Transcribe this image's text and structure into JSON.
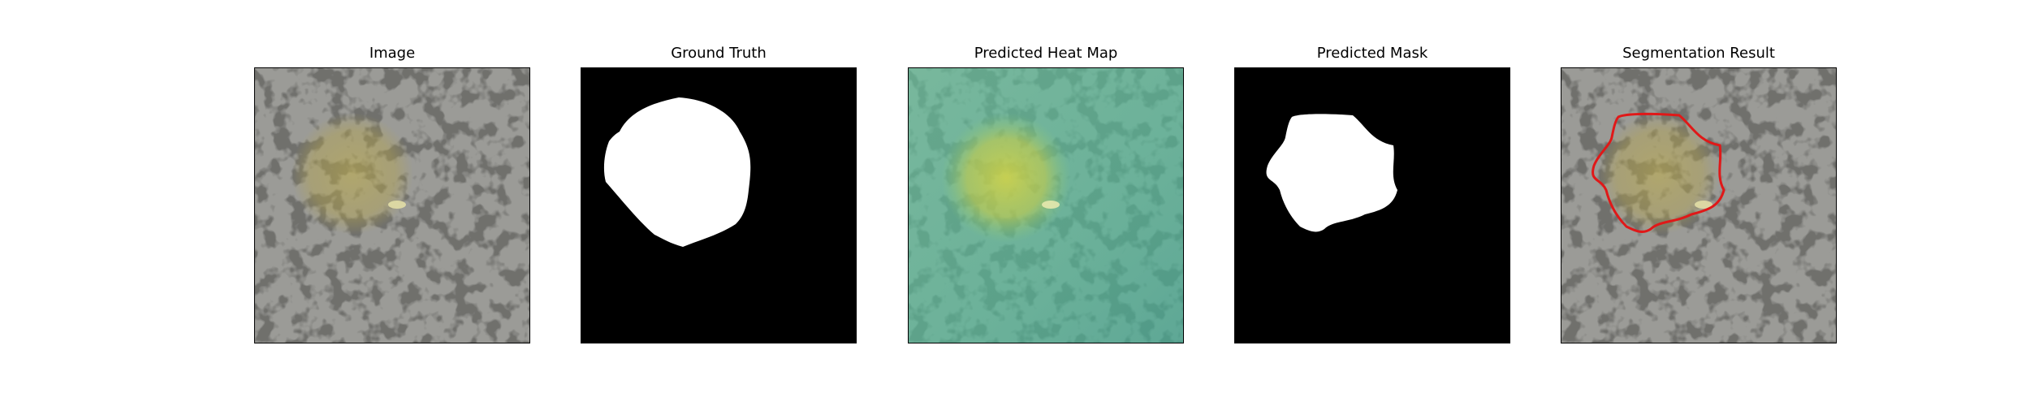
{
  "panels": [
    {
      "title": "Image"
    },
    {
      "title": "Ground Truth"
    },
    {
      "title": "Predicted Heat Map"
    },
    {
      "title": "Predicted Mask"
    },
    {
      "title": "Segmentation Result"
    }
  ],
  "colors": {
    "texture_base": "#9a9a96",
    "texture_spots": "#2e2e2c",
    "defect_tint": "#b6a84a",
    "mask_background": "#000000",
    "mask_foreground": "#ffffff",
    "heatmap_overlay": "#4fc7a0",
    "heatmap_hot": "#d8d23a",
    "contour": "#e01818"
  }
}
